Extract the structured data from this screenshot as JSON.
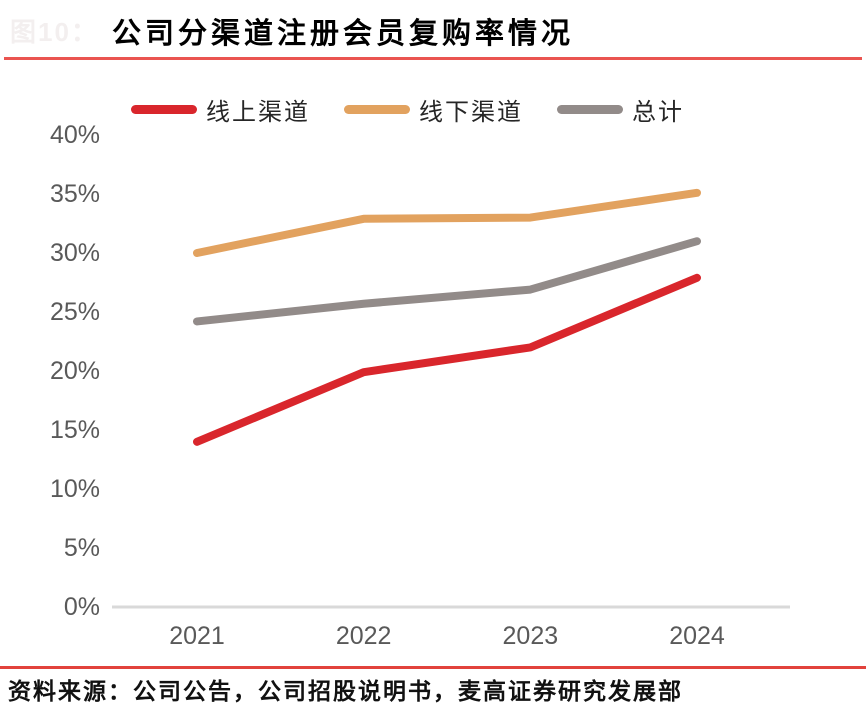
{
  "figure_label": "图10：",
  "title": "公司分渠道注册会员复购率情况",
  "footer": {
    "source": "资料来源：公司公告，公司招股说明书，麦高证券研究发展部",
    "clipped_line": "资料来源：公司公告，公司招股说明书，麦高证券研究发展部"
  },
  "colors": {
    "top_divider_red": "#ea5450",
    "bottom_divider_red": "#e2423c",
    "axis_line_gray": "#d9d9d9",
    "tick_text_gray": "#595959"
  },
  "chart_data": {
    "type": "line",
    "title": "公司分渠道注册会员复购率情况",
    "categories": [
      "2021",
      "2022",
      "2023",
      "2024"
    ],
    "series": [
      {
        "name": "线上渠道",
        "color": "#d9262c",
        "values": [
          14.0,
          19.9,
          22.0,
          27.9
        ]
      },
      {
        "name": "线下渠道",
        "color": "#e2a25f",
        "values": [
          30.0,
          32.9,
          33.0,
          35.1
        ]
      },
      {
        "name": "总计",
        "color": "#928b89",
        "values": [
          24.2,
          25.7,
          26.9,
          31.0
        ]
      }
    ],
    "xlabel": "",
    "ylabel": "",
    "ylim": [
      0,
      40
    ],
    "ytick_step": 5,
    "ytick_format": "percent",
    "grid": false,
    "legend_position": "top"
  }
}
